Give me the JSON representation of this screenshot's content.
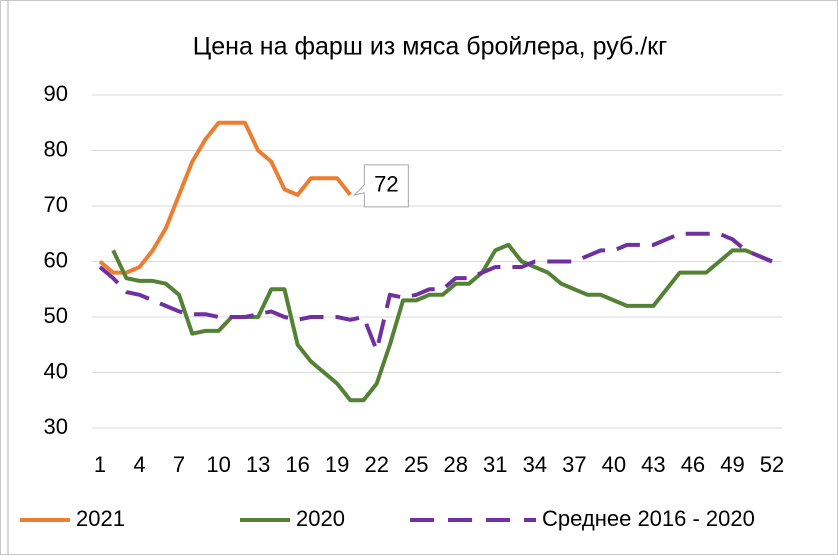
{
  "chart_data": {
    "type": "line",
    "title": "Цена на фарш из мяса бройлера, руб./кг",
    "x": [
      1,
      2,
      3,
      4,
      5,
      6,
      7,
      8,
      9,
      10,
      11,
      12,
      13,
      14,
      15,
      16,
      17,
      18,
      19,
      20,
      21,
      22,
      23,
      24,
      25,
      26,
      27,
      28,
      29,
      30,
      31,
      32,
      33,
      34,
      35,
      36,
      37,
      38,
      39,
      40,
      41,
      42,
      43,
      44,
      45,
      46,
      47,
      48,
      49,
      50,
      51,
      52
    ],
    "xlim": [
      1,
      52
    ],
    "xticks": [
      1,
      4,
      7,
      10,
      13,
      16,
      19,
      22,
      25,
      28,
      31,
      34,
      37,
      40,
      43,
      46,
      49,
      52
    ],
    "ylim": [
      30,
      90
    ],
    "yticks": [
      30,
      40,
      50,
      60,
      70,
      80,
      90
    ],
    "grid": true,
    "legend": "bottom",
    "series": [
      {
        "name": "2021",
        "color": "#ed7d31",
        "dash": false,
        "values": [
          60,
          58,
          58,
          59,
          62,
          66,
          72,
          78,
          82,
          85,
          85,
          85,
          80,
          78,
          73,
          72,
          75,
          75,
          75,
          72,
          null,
          null,
          null,
          null,
          null,
          null,
          null,
          null,
          null,
          null,
          null,
          null,
          null,
          null,
          null,
          null,
          null,
          null,
          null,
          null,
          null,
          null,
          null,
          null,
          null,
          null,
          null,
          null,
          null,
          null,
          null,
          null
        ],
        "label_index": 19
      },
      {
        "name": "2020",
        "color": "#548235",
        "dash": false,
        "values": [
          null,
          62,
          57,
          56.5,
          56.5,
          56,
          54,
          47,
          47.5,
          47.5,
          50,
          50,
          50,
          55,
          55,
          45,
          42,
          40,
          38,
          35,
          35,
          38,
          45,
          53,
          53,
          54,
          54,
          56,
          56,
          58,
          62,
          63,
          60,
          59,
          58,
          56,
          55,
          54,
          54,
          53,
          52,
          52,
          52,
          55,
          58,
          58,
          58,
          60,
          62,
          62,
          61,
          60
        ]
      },
      {
        "name": "Среднее 2016 - 2020",
        "color": "#7030a0",
        "dash": true,
        "values": [
          59,
          57,
          54.5,
          54,
          53,
          52,
          51,
          50.5,
          50.5,
          50,
          50,
          50,
          50.5,
          51,
          50,
          49.5,
          50,
          50,
          50,
          49.5,
          50,
          44,
          54,
          53.5,
          54,
          55,
          55,
          57,
          57,
          58,
          59,
          59,
          59,
          60,
          60,
          60,
          60,
          61,
          62,
          62,
          63,
          63,
          63,
          64,
          65,
          65,
          65,
          65,
          64,
          62,
          61,
          60
        ]
      }
    ]
  }
}
